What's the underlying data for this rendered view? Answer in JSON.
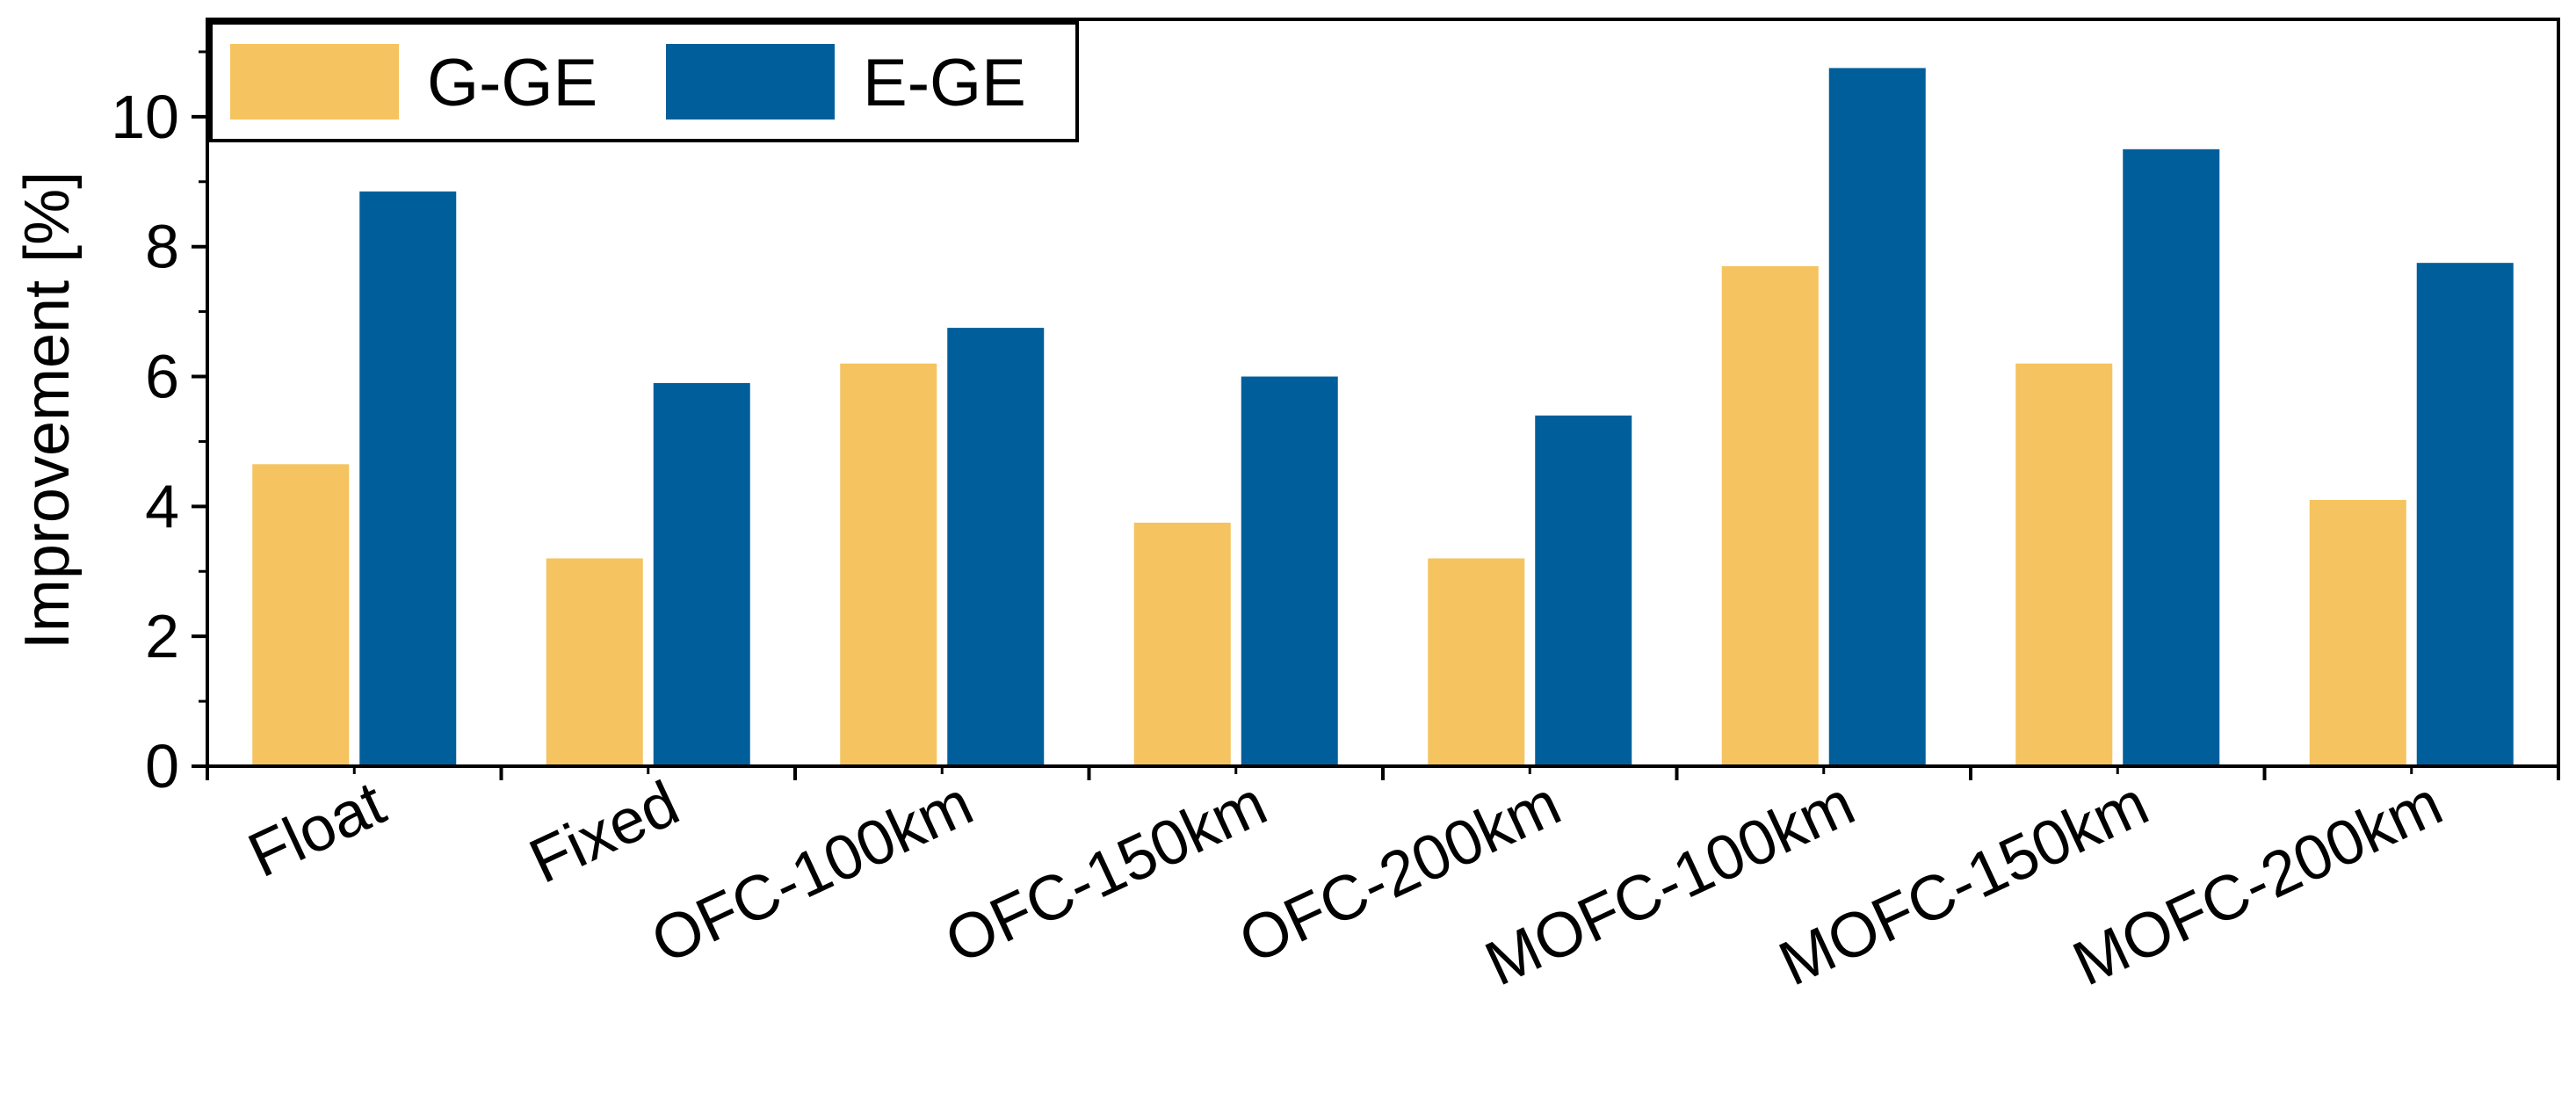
{
  "chart_data": {
    "type": "bar",
    "title": "",
    "xlabel": "",
    "ylabel": "Improvement [%]",
    "ylim": [
      0,
      11.5
    ],
    "yticks": [
      0,
      2,
      4,
      6,
      8,
      10
    ],
    "yticks_labels": [
      "0",
      "2",
      "4",
      "6",
      "8",
      "10"
    ],
    "grid": false,
    "legend_position": "top-left",
    "categories": [
      "Float",
      "Fixed",
      "OFC-100km",
      "OFC-150km",
      "OFC-200km",
      "MOFC-100km",
      "MOFC-150km",
      "MOFC-200km"
    ],
    "series": [
      {
        "name": "G-GE",
        "color": "#F5C35F",
        "values": [
          4.65,
          3.2,
          6.2,
          3.75,
          3.2,
          7.7,
          6.2,
          4.1
        ]
      },
      {
        "name": "E-GE",
        "color": "#005F9B",
        "values": [
          8.85,
          5.9,
          6.75,
          6.0,
          5.4,
          10.75,
          9.5,
          7.75
        ]
      }
    ]
  }
}
